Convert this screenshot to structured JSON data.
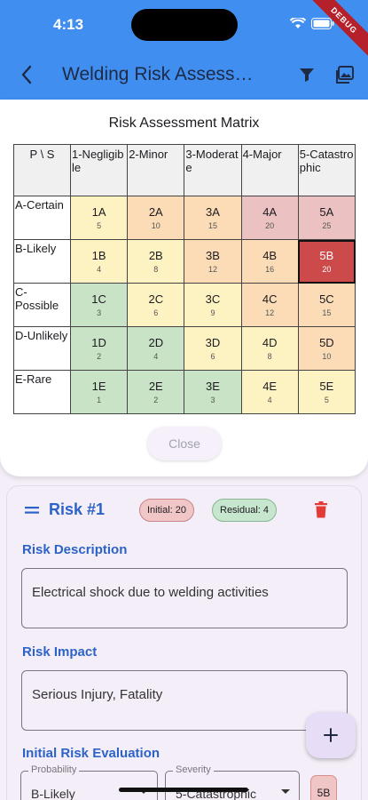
{
  "status_bar": {
    "time": "4:13",
    "debug_label": "DEBUG"
  },
  "app_bar": {
    "title": "Welding Risk Assess…"
  },
  "matrix_dialog": {
    "title": "Risk Assessment Matrix",
    "corner_label": "P \\ S",
    "columns": [
      "1-Negligible",
      "2-Minor",
      "3-Moderate",
      "4-Major",
      "5-Catastrophic"
    ],
    "rows": [
      {
        "label": "A-Certain",
        "cells": [
          {
            "code": "1A",
            "score": "5",
            "color": "#fdf3c2"
          },
          {
            "code": "2A",
            "score": "10",
            "color": "#fbdcb6"
          },
          {
            "code": "3A",
            "score": "15",
            "color": "#fbdcb6"
          },
          {
            "code": "4A",
            "score": "20",
            "color": "#ebc1c1"
          },
          {
            "code": "5A",
            "score": "25",
            "color": "#ebc1c1"
          }
        ]
      },
      {
        "label": "B-Likely",
        "cells": [
          {
            "code": "1B",
            "score": "4",
            "color": "#fdf3c2"
          },
          {
            "code": "2B",
            "score": "8",
            "color": "#fdf3c2"
          },
          {
            "code": "3B",
            "score": "12",
            "color": "#fbdcb6"
          },
          {
            "code": "4B",
            "score": "16",
            "color": "#fbdcb6"
          },
          {
            "code": "5B",
            "score": "20",
            "color": "#cc4a4a",
            "selected": true
          }
        ]
      },
      {
        "label": "C-Possible",
        "cells": [
          {
            "code": "1C",
            "score": "3",
            "color": "#c9e3c6"
          },
          {
            "code": "2C",
            "score": "6",
            "color": "#fdf3c2"
          },
          {
            "code": "3C",
            "score": "9",
            "color": "#fdf3c2"
          },
          {
            "code": "4C",
            "score": "12",
            "color": "#fbdcb6"
          },
          {
            "code": "5C",
            "score": "15",
            "color": "#fbdcb6"
          }
        ]
      },
      {
        "label": "D-Unlikely",
        "cells": [
          {
            "code": "1D",
            "score": "2",
            "color": "#c9e3c6"
          },
          {
            "code": "2D",
            "score": "4",
            "color": "#c9e3c6"
          },
          {
            "code": "3D",
            "score": "6",
            "color": "#fdf3c2"
          },
          {
            "code": "4D",
            "score": "8",
            "color": "#fdf3c2"
          },
          {
            "code": "5D",
            "score": "10",
            "color": "#fbdcb6"
          }
        ]
      },
      {
        "label": "E-Rare",
        "cells": [
          {
            "code": "1E",
            "score": "1",
            "color": "#c9e3c6"
          },
          {
            "code": "2E",
            "score": "2",
            "color": "#c9e3c6"
          },
          {
            "code": "3E",
            "score": "3",
            "color": "#c9e3c6"
          },
          {
            "code": "4E",
            "score": "4",
            "color": "#fdf3c2"
          },
          {
            "code": "5E",
            "score": "5",
            "color": "#fdf3c2"
          }
        ]
      }
    ],
    "close_label": "Close"
  },
  "risk_card": {
    "title": "Risk #1",
    "initial_badge": "Initial: 20",
    "residual_badge": "Residual: 4",
    "description_label": "Risk Description",
    "description_value": "Electrical shock due to welding activities",
    "impact_label": "Risk Impact",
    "impact_value": "Serious Injury, Fatality",
    "initial_eval_label": "Initial Risk Evaluation",
    "probability_label": "Probability",
    "probability_value": "B-Likely",
    "severity_label": "Severity",
    "severity_value": "5-Catastrophic",
    "initial_code": "5B"
  },
  "colors": {
    "app_bar": "#3f8ef0",
    "accent_text": "#2d63c8",
    "delete": "#e53935"
  }
}
